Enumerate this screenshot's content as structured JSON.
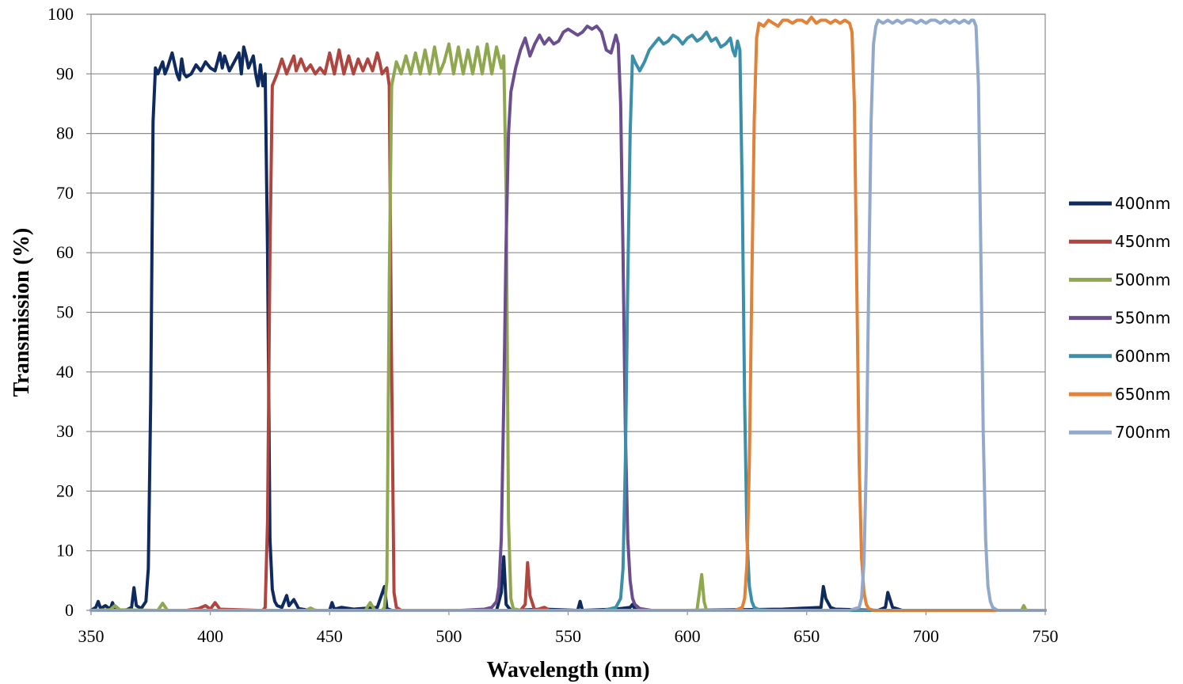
{
  "chart_data": {
    "type": "line",
    "title": "",
    "xlabel": "Wavelength (nm)",
    "ylabel": "Transmission (%)",
    "xlim": [
      350,
      750
    ],
    "ylim": [
      0,
      100
    ],
    "xticks": [
      350,
      400,
      450,
      500,
      550,
      600,
      650,
      700,
      750
    ],
    "yticks": [
      0,
      10,
      20,
      30,
      40,
      50,
      60,
      70,
      80,
      90,
      100
    ],
    "grid": "horizontal",
    "legend_position": "right",
    "series": [
      {
        "name": "400nm",
        "color": "#0f2a5e",
        "x": [
          350,
          352,
          353,
          354,
          356,
          358,
          359,
          360,
          362,
          365,
          367,
          368,
          369,
          371,
          373,
          374,
          375,
          376,
          377,
          378,
          380,
          381,
          382,
          384,
          386,
          387,
          388,
          389,
          390,
          392,
          394,
          396,
          398,
          400,
          402,
          404,
          405,
          406,
          408,
          410,
          412,
          413,
          414,
          415,
          416,
          418,
          419,
          420,
          421,
          422,
          423,
          424,
          425,
          426,
          427,
          428,
          430,
          432,
          433,
          435,
          437,
          440,
          445,
          450,
          451,
          452,
          455,
          460,
          470,
          473,
          474,
          476,
          490,
          520,
          522,
          523,
          524,
          526,
          540,
          554,
          555,
          556,
          570,
          576,
          577,
          578,
          580,
          600,
          640,
          656,
          657,
          658,
          660,
          662,
          680,
          683,
          684,
          686,
          690,
          700,
          750
        ],
        "y": [
          0,
          0.5,
          1.5,
          0.3,
          0.8,
          0.2,
          1.3,
          0.2,
          0,
          0.1,
          0.5,
          3.8,
          0.8,
          0.3,
          1.5,
          7,
          35,
          82,
          91,
          90,
          92,
          90,
          91,
          93.5,
          90,
          89,
          92.5,
          90,
          89.5,
          90,
          91.5,
          90.5,
          92,
          91,
          90.5,
          93.5,
          91,
          93,
          90.5,
          92,
          93.5,
          90,
          94.5,
          93,
          91,
          93,
          90,
          88,
          91.5,
          88,
          90,
          60,
          12,
          3.5,
          1.5,
          0.8,
          0.5,
          2.5,
          0.8,
          1.8,
          0.3,
          0.1,
          0,
          0,
          1.3,
          0.2,
          0.5,
          0.2,
          0.5,
          4,
          0.3,
          0,
          0,
          0,
          3,
          9,
          1,
          0,
          0.2,
          0,
          1.5,
          0,
          0.2,
          0.5,
          1,
          0.2,
          0,
          0,
          0.2,
          0.5,
          4,
          2,
          0.5,
          0.2,
          0,
          0.5,
          3,
          0.5,
          0,
          0,
          0
        ]
      },
      {
        "name": "450nm",
        "color": "#b0453f",
        "x": [
          350,
          390,
          395,
          398,
          400,
          402,
          404,
          420,
          422,
          423,
          424,
          425,
          426,
          428,
          430,
          432,
          434,
          435,
          436,
          438,
          440,
          442,
          444,
          446,
          448,
          450,
          452,
          454,
          456,
          458,
          460,
          462,
          464,
          466,
          468,
          470,
          471,
          472,
          474,
          475,
          476,
          477,
          478,
          480,
          490,
          530,
          532,
          533,
          534,
          536,
          540,
          541,
          542,
          545,
          750
        ],
        "y": [
          0,
          0,
          0.3,
          0.8,
          0.2,
          1.3,
          0.2,
          0,
          0,
          0.5,
          15,
          60,
          88,
          90,
          92.5,
          90,
          92,
          93,
          90.5,
          92.5,
          90.5,
          91.5,
          90,
          91,
          90,
          93.5,
          90,
          94,
          90,
          93,
          90,
          92.5,
          90.5,
          92.5,
          90.5,
          93.5,
          92,
          90,
          91,
          88,
          40,
          3,
          0.5,
          0,
          0,
          0,
          1,
          8,
          2.5,
          0,
          0.5,
          0.3,
          0,
          0,
          0
        ]
      },
      {
        "name": "500nm",
        "color": "#8fa84f",
        "x": [
          350,
          358,
          360,
          362,
          378,
          380,
          382,
          440,
          442,
          444,
          465,
          467,
          469,
          472,
          473,
          474,
          475,
          476,
          477,
          478,
          480,
          482,
          484,
          486,
          488,
          490,
          492,
          494,
          496,
          498,
          500,
          502,
          504,
          506,
          508,
          510,
          512,
          514,
          516,
          518,
          520,
          522,
          523,
          524,
          525,
          526,
          527,
          530,
          560,
          604,
          605,
          606,
          607,
          608,
          650,
          740,
          741,
          742,
          750
        ],
        "y": [
          0,
          0.1,
          0.8,
          0.1,
          0,
          1.2,
          0,
          0,
          0.4,
          0,
          0,
          1.3,
          0,
          0,
          0.5,
          5,
          55,
          88,
          90,
          92,
          90,
          93,
          90,
          93.5,
          90,
          94,
          90,
          94.5,
          90,
          92,
          95,
          90,
          94.5,
          90,
          94,
          90,
          94.5,
          90,
          95,
          90,
          94.5,
          91,
          93,
          70,
          15,
          2,
          0.3,
          0,
          0,
          0,
          3,
          6,
          1.5,
          0,
          0,
          0,
          0.8,
          0,
          0
        ]
      },
      {
        "name": "550nm",
        "color": "#6b4e8e",
        "x": [
          350,
          505,
          515,
          518,
          520,
          521,
          522,
          523,
          524,
          525,
          526,
          528,
          530,
          532,
          534,
          536,
          538,
          540,
          542,
          544,
          546,
          548,
          550,
          552,
          554,
          556,
          558,
          560,
          562,
          564,
          566,
          568,
          570,
          571,
          572,
          573,
          574,
          575,
          576,
          577,
          578,
          580,
          585,
          600,
          750
        ],
        "y": [
          0,
          0,
          0.2,
          0.5,
          1.5,
          4,
          12,
          35,
          62,
          80,
          87,
          91,
          94,
          96,
          93,
          95,
          96.5,
          95,
          96,
          95,
          95.5,
          97,
          97.5,
          97,
          96.5,
          97,
          98,
          97.5,
          98,
          97,
          94,
          93.5,
          96.5,
          95,
          85,
          60,
          30,
          12,
          5,
          2,
          1,
          0.3,
          0,
          0,
          0
        ]
      },
      {
        "name": "600nm",
        "color": "#3c8fa8",
        "x": [
          350,
          565,
          570,
          572,
          573,
          574,
          575,
          576,
          577,
          578,
          580,
          582,
          584,
          586,
          588,
          590,
          592,
          594,
          596,
          598,
          600,
          602,
          604,
          606,
          608,
          610,
          612,
          614,
          616,
          618,
          619,
          620,
          621,
          622,
          623,
          624,
          625,
          626,
          627,
          628,
          630,
          635,
          750
        ],
        "y": [
          0,
          0,
          0.5,
          2,
          7,
          25,
          55,
          80,
          93,
          92,
          90.5,
          92,
          94,
          95,
          96,
          95,
          95.5,
          96.5,
          96,
          95,
          96,
          96.5,
          95.5,
          96,
          97,
          95.5,
          96,
          94.5,
          95,
          96,
          94,
          93,
          95.5,
          94,
          70,
          35,
          12,
          4,
          1.5,
          0.5,
          0.1,
          0,
          0
        ]
      },
      {
        "name": "650nm",
        "color": "#e0823a",
        "x": [
          350,
          620,
          623,
          624,
          625,
          626,
          627,
          628,
          629,
          630,
          632,
          634,
          636,
          638,
          640,
          642,
          644,
          646,
          648,
          650,
          652,
          654,
          656,
          658,
          660,
          662,
          664,
          666,
          668,
          669,
          670,
          671,
          672,
          673,
          674,
          675,
          676,
          678,
          680,
          690,
          750
        ],
        "y": [
          0,
          0,
          0.5,
          2,
          8,
          25,
          55,
          82,
          96,
          98.5,
          98,
          99,
          98.5,
          98,
          99,
          99,
          98.5,
          99,
          99,
          98.5,
          99.5,
          98.5,
          99,
          99,
          98.5,
          99,
          98.5,
          99,
          98.5,
          97,
          85,
          55,
          25,
          9,
          3,
          1,
          0.3,
          0,
          0,
          0,
          0
        ]
      },
      {
        "name": "700nm",
        "color": "#93a9cc",
        "x": [
          350,
          668,
          672,
          673,
          674,
          675,
          676,
          677,
          678,
          679,
          680,
          682,
          684,
          686,
          688,
          690,
          692,
          694,
          696,
          698,
          700,
          702,
          704,
          706,
          708,
          710,
          712,
          714,
          716,
          718,
          719,
          720,
          721,
          722,
          723,
          724,
          725,
          726,
          727,
          728,
          730,
          750
        ],
        "y": [
          0,
          0,
          0.5,
          2,
          8,
          25,
          55,
          82,
          95,
          98,
          99,
          98.5,
          99,
          98.5,
          99,
          98.5,
          99,
          99,
          98.5,
          99,
          98.5,
          99,
          99,
          98.5,
          99,
          98.5,
          99,
          98.5,
          99,
          98.5,
          99,
          99,
          98,
          88,
          60,
          30,
          12,
          4,
          1.5,
          0.5,
          0,
          0
        ]
      }
    ]
  }
}
